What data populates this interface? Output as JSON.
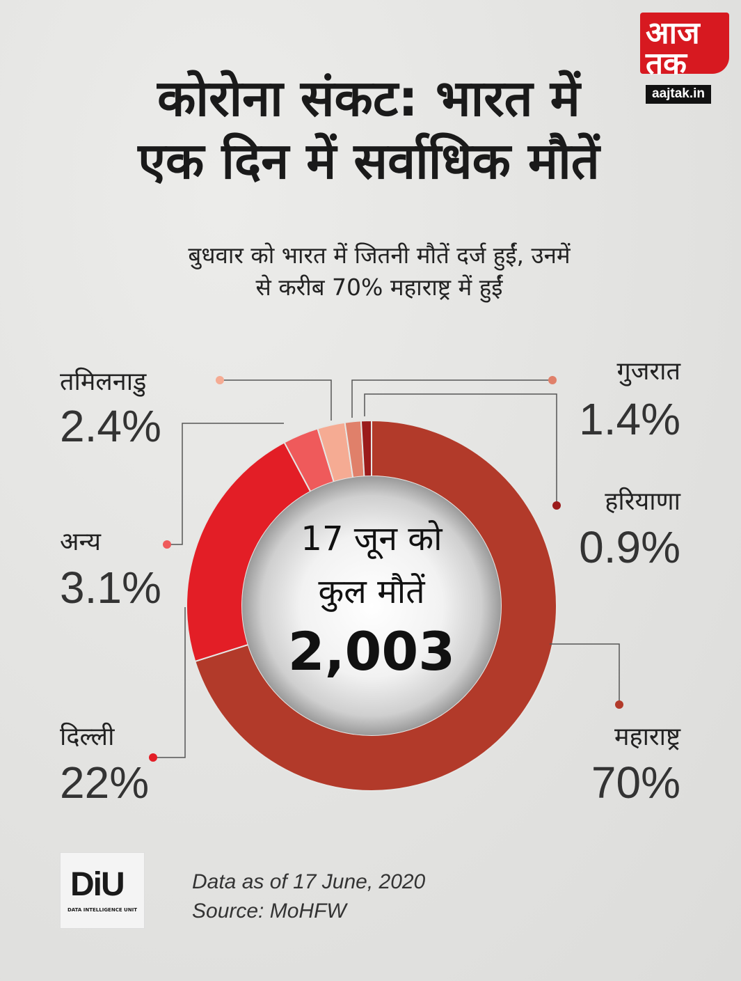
{
  "brand": {
    "logo_text": "आज तक",
    "site": "aajtak.in"
  },
  "title_lines": [
    "कोरोना संकट: भारत में",
    "एक दिन में सर्वाधिक मौतें"
  ],
  "subtitle_lines": [
    "बुधवार को भारत में जितनी मौतें दर्ज हुईं, उनमें",
    "से करीब 70% महाराष्ट्र में हुईं"
  ],
  "chart_data": {
    "type": "pie",
    "variant": "donut",
    "center": {
      "line1": "17 जून को",
      "line2": "कुल मौतें",
      "total": "2,003"
    },
    "slices": [
      {
        "name": "महाराष्ट्र",
        "label": "70%",
        "value": 70,
        "color": "#b23a2a"
      },
      {
        "name": "दिल्ली",
        "label": "22%",
        "value": 22,
        "color": "#e31e26"
      },
      {
        "name": "अन्य",
        "label": "3.1%",
        "value": 3.1,
        "color": "#ef5a5b"
      },
      {
        "name": "तमिलनाडु",
        "label": "2.4%",
        "value": 2.4,
        "color": "#f5ab93"
      },
      {
        "name": "गुजरात",
        "label": "1.4%",
        "value": 1.4,
        "color": "#e0806a"
      },
      {
        "name": "हरियाणा",
        "label": "0.9%",
        "value": 0.9,
        "color": "#9b1b1b"
      }
    ]
  },
  "footer": {
    "logo_text": "DiU",
    "logo_subtext": "DATA INTELLIGENCE UNIT",
    "note_line1": "Data as of 17 June, 2020",
    "note_line2": "Source: MoHFW"
  }
}
